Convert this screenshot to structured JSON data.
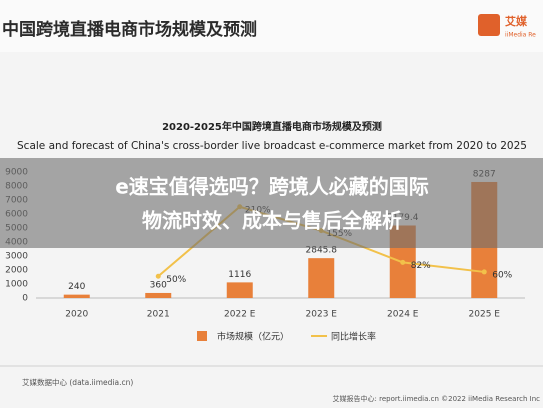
{
  "header": {
    "title": "中国跨境直播电商市场规模及预测",
    "logo_name": "艾媒",
    "logo_sub": "iiMedia Re"
  },
  "overlay": {
    "headline_lines": [
      "e速宝值得选吗？跨境人必藏的国际",
      "物流时效、成本与售后全解析"
    ]
  },
  "chart_data": {
    "type": "bar",
    "title": "2020-2025年中国跨境直播电商市场规模及预测",
    "subtitle": "Scale and forecast of China's cross-border live broadcast e-commerce market from 2020 to 2025",
    "categories": [
      "2020",
      "2021",
      "2022 E",
      "2023 E",
      "2024 E",
      "2025 E"
    ],
    "series": [
      {
        "name": "市场规模（亿元）",
        "color": "#e8803a",
        "values": [
          240,
          360,
          1116,
          2845.8,
          5179.4,
          8287
        ]
      },
      {
        "name": "同比增长率",
        "color": "#f2c14a",
        "axis": "y2",
        "type": "line",
        "values": [
          null,
          50,
          210,
          155,
          82,
          60
        ],
        "value_labels": [
          null,
          "50%",
          "210%",
          "155%",
          "82%",
          "60%"
        ]
      }
    ],
    "ylim": [
      0,
      9000
    ],
    "yticks": [
      0,
      1000,
      2000,
      3000,
      4000,
      5000,
      6000,
      7000,
      8000,
      9000
    ],
    "y2lim": [
      0,
      290
    ],
    "grid": false,
    "legend": "bottom"
  },
  "footer": {
    "left": "艾媒数据中心 (data.iimedia.cn)",
    "right": "艾媒报告中心: report.iimedia.cn  ©2022 iiMedia Research Inc"
  }
}
